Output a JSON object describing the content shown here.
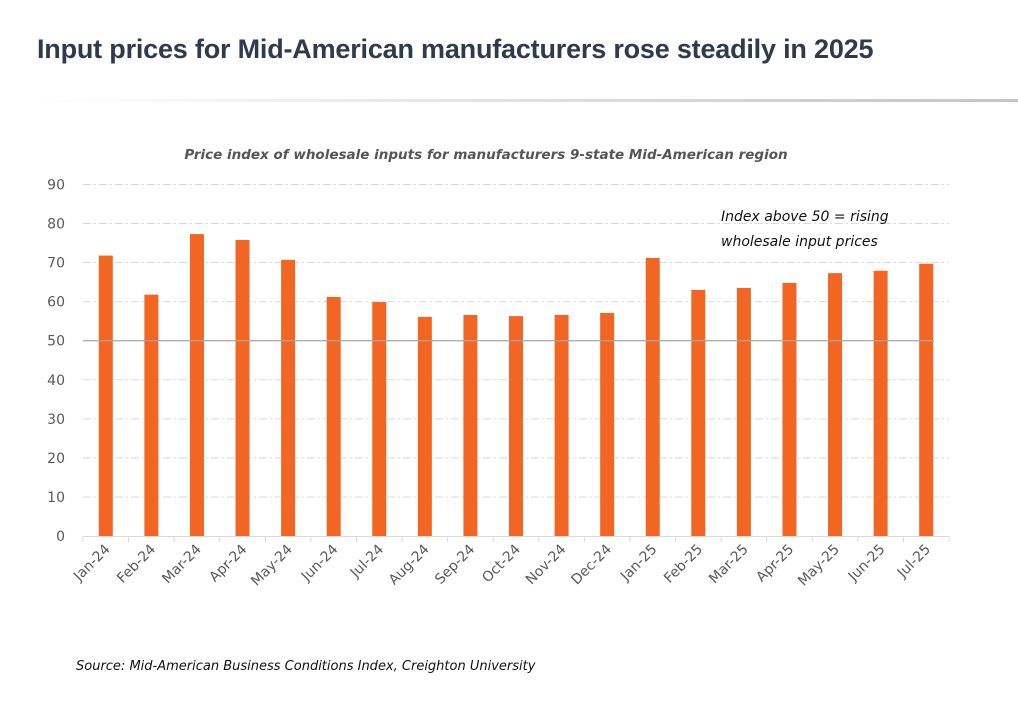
{
  "page": {
    "title": "Input prices for Mid-American manufacturers rose steadily in 2025"
  },
  "colors": {
    "bar": "#f26522",
    "gridline": "#d9d9d9",
    "reference_line": "#a6a6a6",
    "axis": "#d9d9d9",
    "title_text": "#2e3a4d"
  },
  "chart_data": {
    "type": "bar",
    "title": "Price index of wholesale inputs for manufacturers 9-state Mid-American region",
    "xlabel": "",
    "ylabel": "",
    "categories": [
      "Jan-24",
      "Feb-24",
      "Mar-24",
      "Apr-24",
      "May-24",
      "Jun-24",
      "Jul-24",
      "Aug-24",
      "Sep-24",
      "Oct-24",
      "Nov-24",
      "Dec-24",
      "Jan-25",
      "Feb-25",
      "Mar-25",
      "Apr-25",
      "May-25",
      "Jun-25",
      "Jul-25"
    ],
    "values": [
      71.8,
      61.8,
      77.3,
      75.8,
      70.7,
      61.2,
      59.9,
      56.1,
      56.6,
      56.3,
      56.6,
      57.1,
      71.2,
      63.0,
      63.5,
      64.8,
      67.3,
      67.9,
      69.7
    ],
    "ylim": [
      0,
      90
    ],
    "yticks": [
      0,
      10,
      20,
      30,
      40,
      50,
      60,
      70,
      80,
      90
    ],
    "grid": true,
    "reference_line": {
      "value": 50
    },
    "annotation": {
      "lines": [
        "Index above 50 = rising",
        "wholesale input prices"
      ]
    },
    "legend": "none",
    "source": "Source: Mid-American Business Conditions Index, Creighton University"
  }
}
